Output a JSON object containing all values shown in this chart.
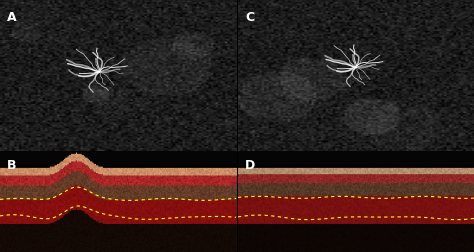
{
  "figure_width": 4.74,
  "figure_height": 2.53,
  "dpi": 100,
  "background_color": "#000000",
  "panel_labels": [
    "A",
    "B",
    "C",
    "D"
  ],
  "label_color": "#ffffff",
  "label_fontsize": 9,
  "divider_color": "#ffffff",
  "divider_linewidth": 1.0,
  "top_bg_color": "#1a1a1a",
  "top_vessel_color": "#d0d0d0",
  "bottom_oct_red": "#8b0000",
  "bottom_oct_gray": "#808080",
  "yellow_dashed_color": "#ffff00"
}
